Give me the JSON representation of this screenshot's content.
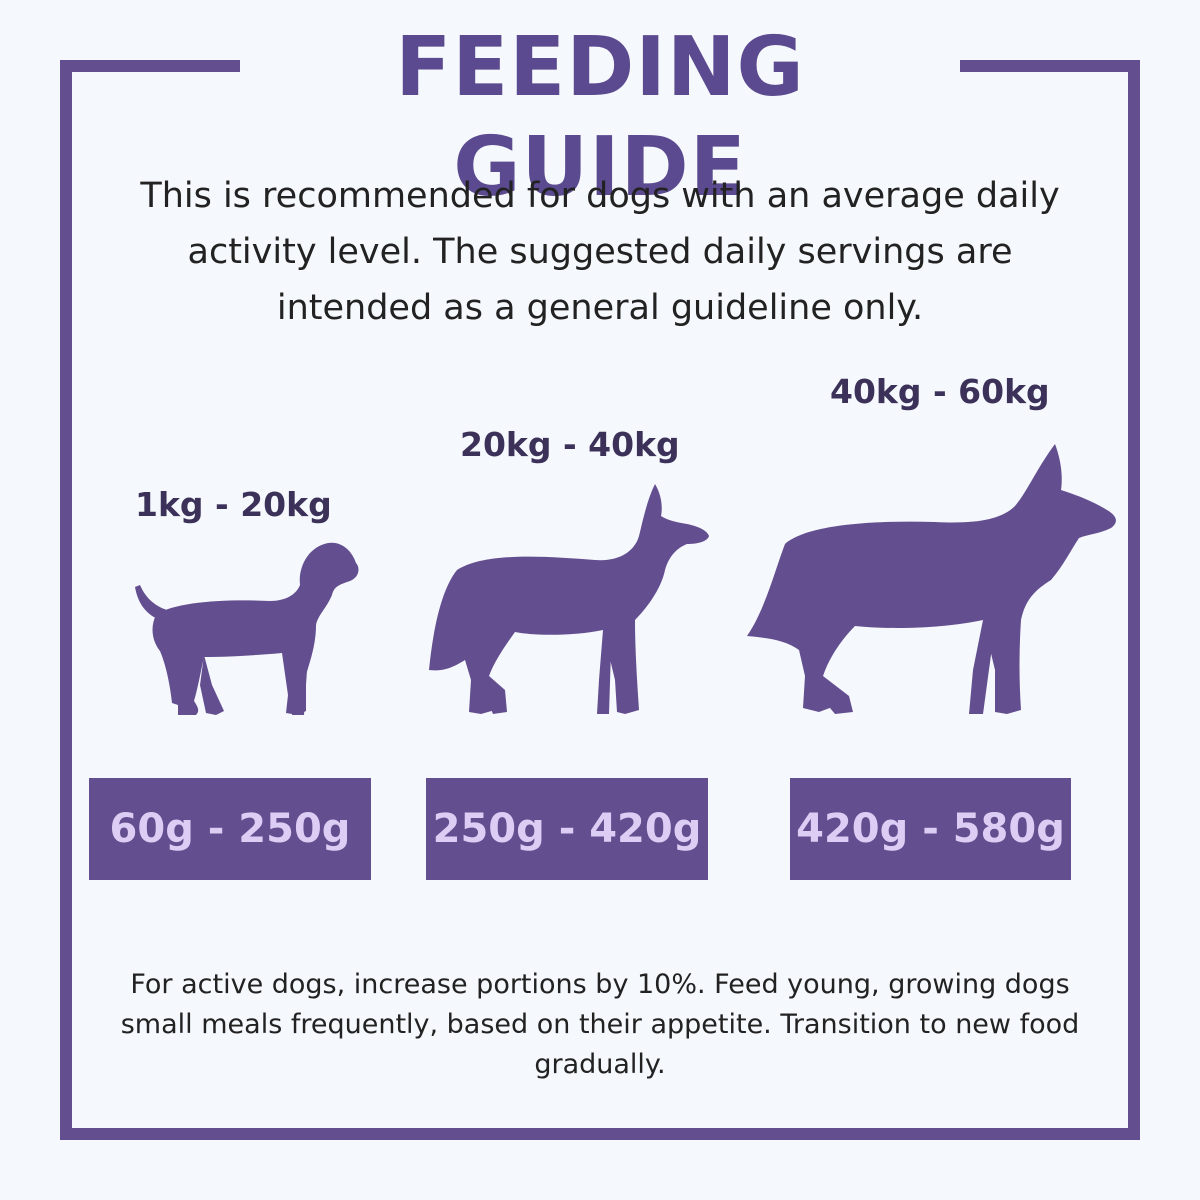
{
  "title": "FEEDING GUIDE",
  "intro": "This is recommended for dogs with an average daily activity level. The suggested daily servings are intended as a general guideline only.",
  "groups": [
    {
      "weight": "1kg - 20kg",
      "portion": "60g - 250g",
      "icon": "small-dog-icon"
    },
    {
      "weight": "20kg - 40kg",
      "portion": "250g - 420g",
      "icon": "medium-dog-icon"
    },
    {
      "weight": "40kg - 60kg",
      "portion": "420g - 580g",
      "icon": "large-dog-icon"
    }
  ],
  "footer": "For active dogs, increase portions by 10%. Feed young, growing dogs small meals frequently, based on their appetite. Transition to new food gradually.",
  "colors": {
    "accent": "#634e8f",
    "portion_text": "#dccdf5",
    "background": "#f5f8fc"
  }
}
